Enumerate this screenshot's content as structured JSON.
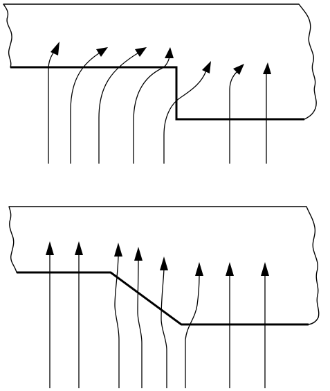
{
  "figure": {
    "panels": [
      {
        "id": "upper",
        "description_name": "abrupt-step-interface",
        "ray_count": 7
      },
      {
        "id": "lower",
        "description_name": "sloped-step-interface",
        "ray_count": 8
      }
    ],
    "colors": {
      "background": "#ffffff",
      "ink": "#000000"
    },
    "icons": [
      "arrow-up-icon"
    ]
  }
}
